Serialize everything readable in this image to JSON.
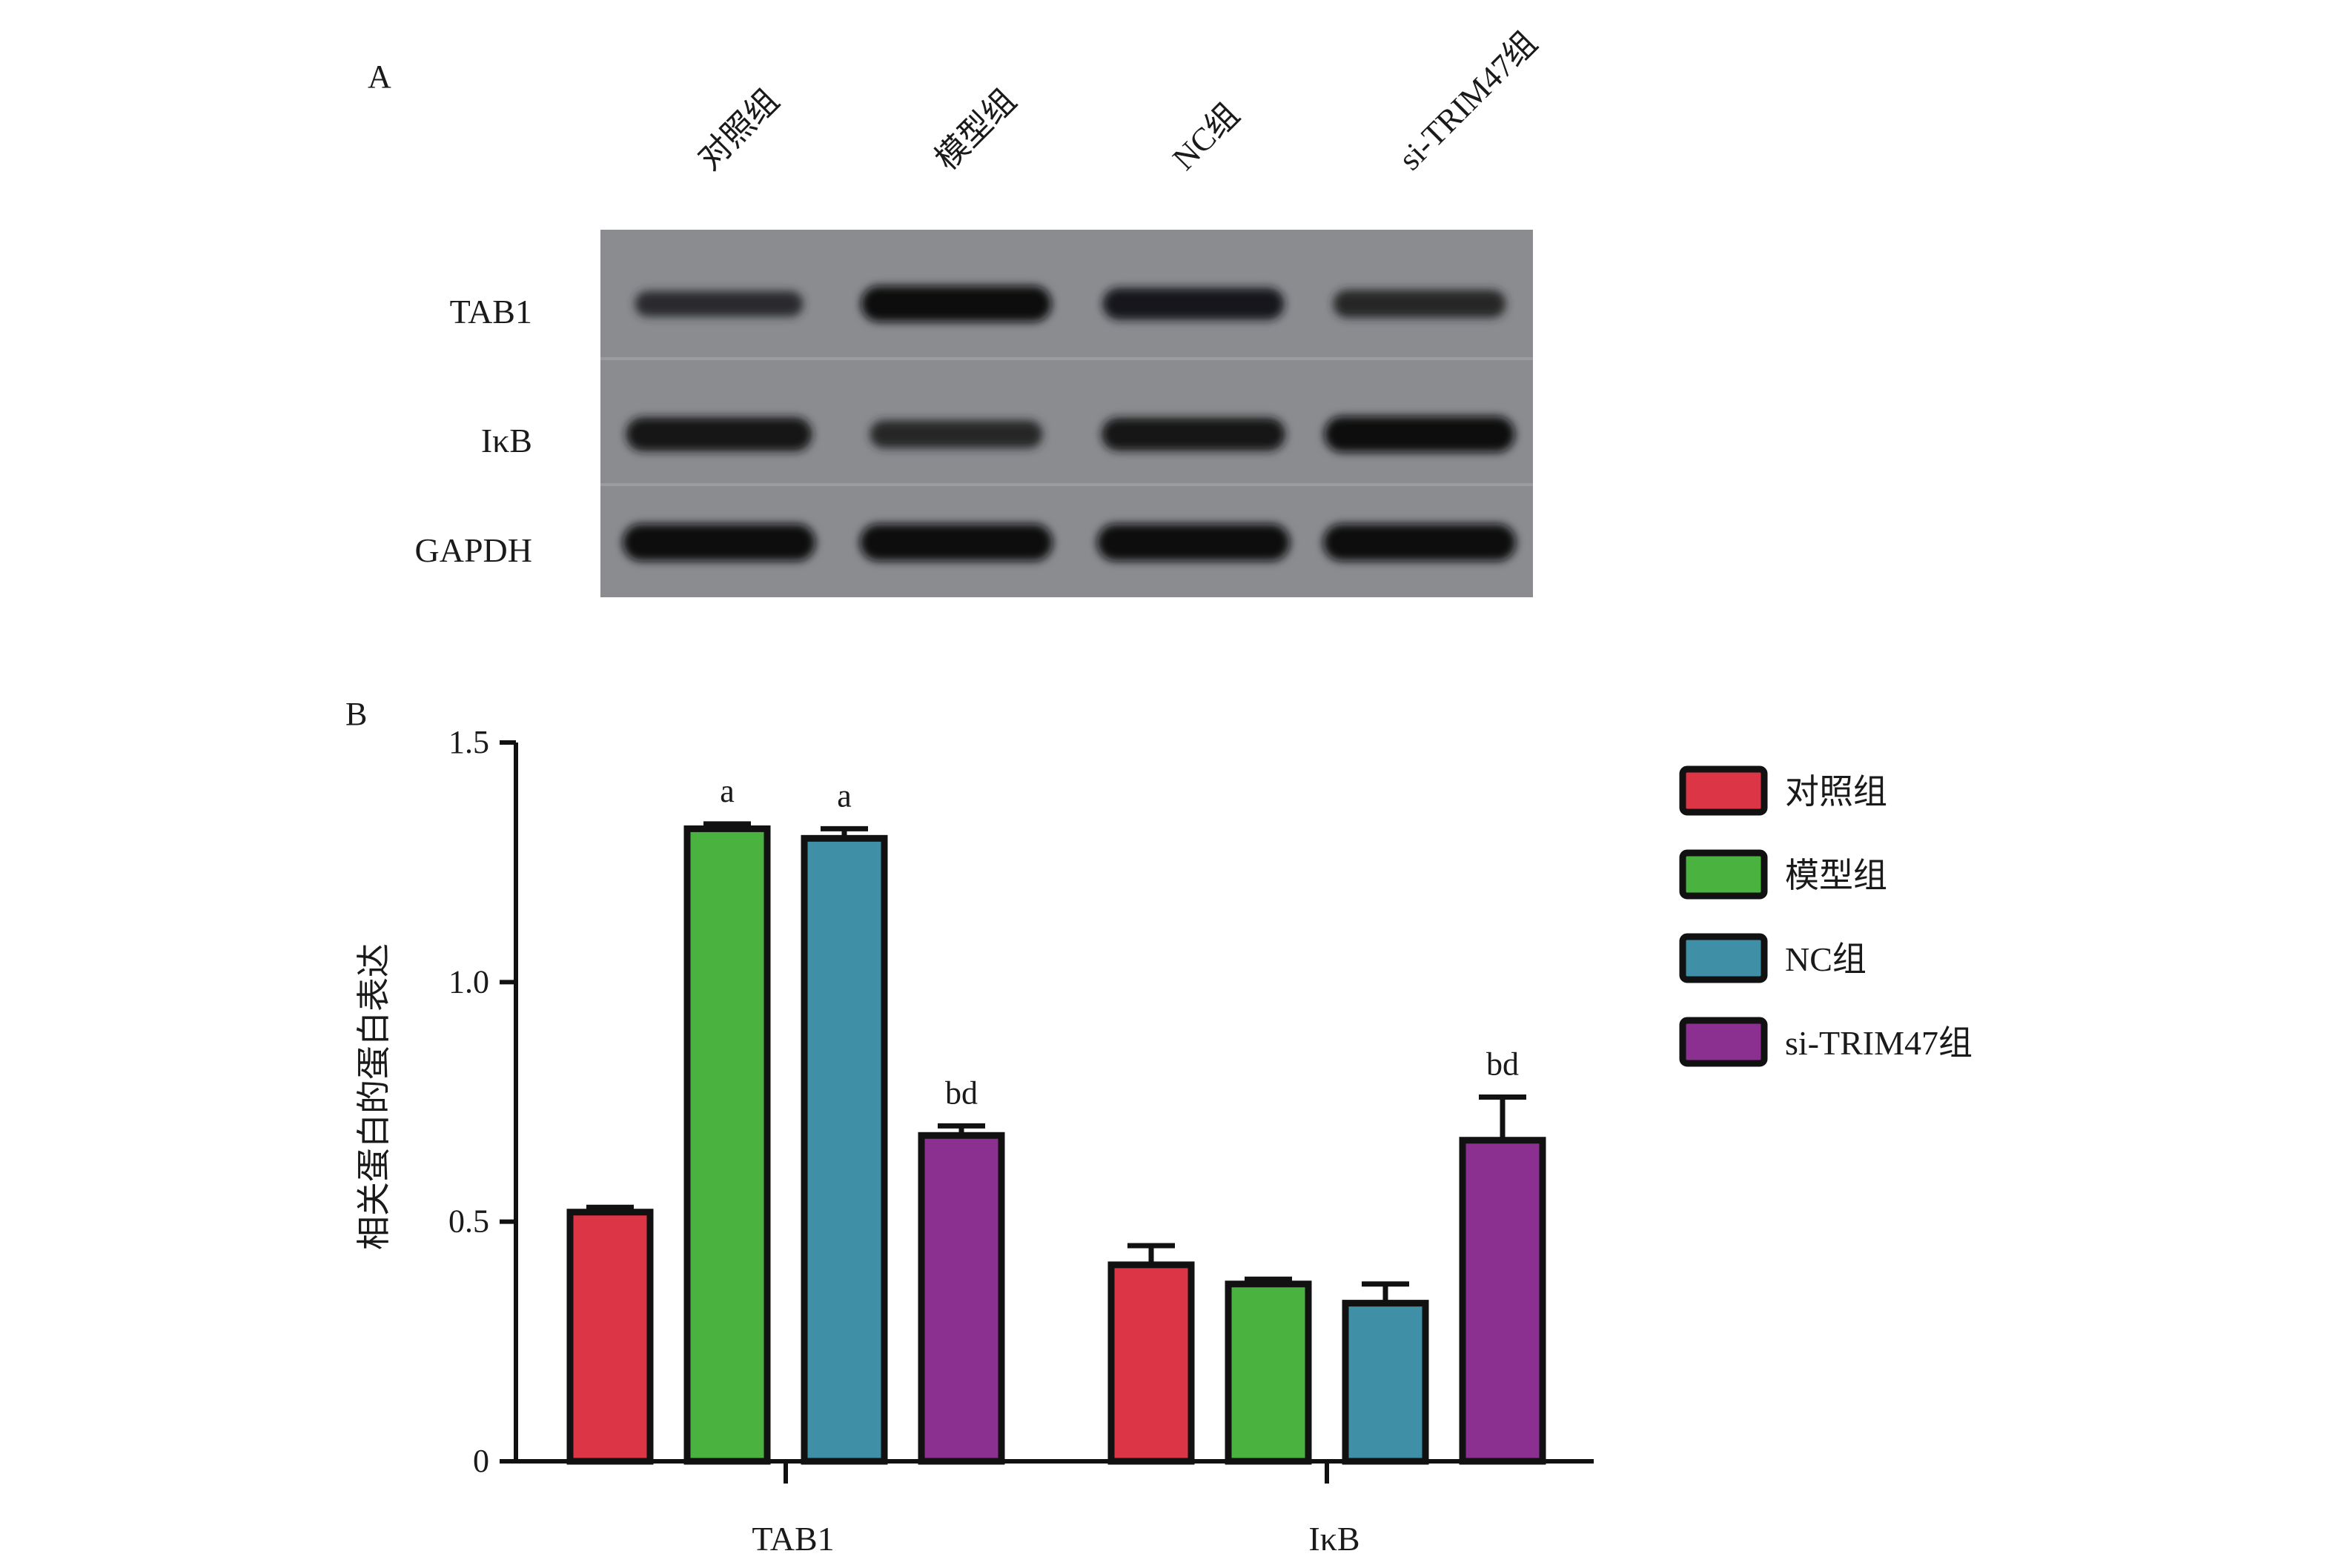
{
  "panels": {
    "a_label": "A",
    "b_label": "B"
  },
  "blot": {
    "lanes": [
      "对照组",
      "模型组",
      "NC组",
      "si-TRIM47组"
    ],
    "rows": [
      {
        "name": "TAB1",
        "intensity": [
          0.45,
          0.95,
          0.75,
          0.55
        ]
      },
      {
        "name": "IκB",
        "intensity": [
          0.85,
          0.55,
          0.8,
          0.95
        ]
      },
      {
        "name": "GAPDH",
        "intensity": [
          1.0,
          1.0,
          1.0,
          1.0
        ]
      }
    ],
    "background_color": "#8a8c90"
  },
  "chart_data": {
    "type": "bar",
    "ylabel": "相关蛋白的蛋白表达",
    "xlabel": "",
    "ylim": [
      0,
      1.5
    ],
    "yticks": [
      0,
      0.5,
      1.0,
      1.5
    ],
    "ytick_labels": [
      "0",
      "0.5",
      "1.0",
      "1.5"
    ],
    "categories": [
      "TAB1",
      "IκB"
    ],
    "legend_position": "right",
    "series": [
      {
        "name": "对照组",
        "color": "#dc3545",
        "values": [
          0.52,
          0.41
        ],
        "errors": [
          0.01,
          0.04
        ],
        "annotations": [
          "",
          ""
        ]
      },
      {
        "name": "模型组",
        "color": "#4ab340",
        "values": [
          1.32,
          0.37
        ],
        "errors": [
          0.01,
          0.01
        ],
        "annotations": [
          "a",
          ""
        ]
      },
      {
        "name": "NC组",
        "color": "#3f8fa6",
        "values": [
          1.3,
          0.33
        ],
        "errors": [
          0.02,
          0.04
        ],
        "annotations": [
          "a",
          ""
        ]
      },
      {
        "name": "si-TRIM47组",
        "color": "#8b2f91",
        "values": [
          0.68,
          0.67
        ],
        "errors": [
          0.02,
          0.09
        ],
        "annotations": [
          "bd",
          "bd"
        ]
      }
    ]
  }
}
